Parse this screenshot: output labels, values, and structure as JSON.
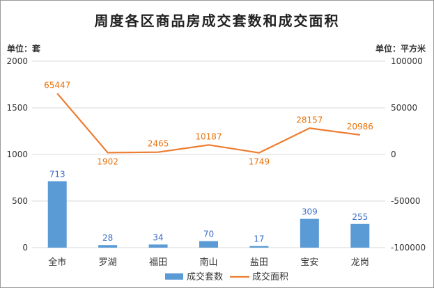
{
  "chart_data": {
    "type": "bar",
    "title": "周度各区商品房成交套数和成交面积",
    "left_unit": "单位：套",
    "right_unit": "单位：平方米",
    "categories": [
      "全市",
      "罗湖",
      "福田",
      "南山",
      "盐田",
      "宝安",
      "龙岗"
    ],
    "series": [
      {
        "name": "成交套数",
        "type": "bar",
        "axis": "left",
        "color": "#5b9bd5",
        "values": [
          713,
          28,
          34,
          70,
          17,
          309,
          255
        ]
      },
      {
        "name": "成交面积",
        "type": "line",
        "axis": "right",
        "color": "#ed7d31",
        "values": [
          65447,
          1902,
          2465,
          10187,
          1749,
          28157,
          20986
        ]
      }
    ],
    "y_left": {
      "min": 0,
      "max": 2000,
      "ticks": [
        0,
        500,
        1000,
        1500,
        2000
      ]
    },
    "y_right": {
      "min": -100000,
      "max": 100000,
      "ticks": [
        -100000,
        -50000,
        0,
        50000,
        100000
      ]
    },
    "grid": true,
    "legend": "bottom"
  }
}
